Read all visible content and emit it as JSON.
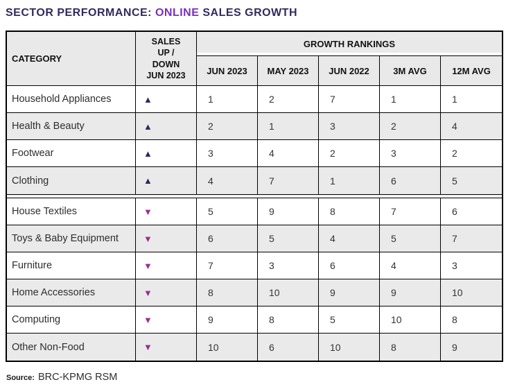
{
  "title": {
    "part1": "SECTOR PERFORMANCE: ",
    "highlight": "ONLINE",
    "part2": " SALES GROWTH"
  },
  "colors": {
    "title_dark": "#322a5e",
    "title_highlight": "#7c2fc0",
    "up_arrow": "#2b2963",
    "down_arrow": "#9b2e91",
    "header_bg": "#e9e9e9",
    "alt_row_bg": "#eaeaea",
    "border": "#000000"
  },
  "icons": {
    "up": "▲",
    "down": "▼"
  },
  "chart_data": {
    "type": "table",
    "title": "SECTOR PERFORMANCE: ONLINE SALES GROWTH",
    "header": {
      "category": "CATEGORY",
      "sales_up_down": "SALES\nUP /\nDOWN\nJUN 2023",
      "group": "GROWTH RANKINGS",
      "ranking_columns": [
        "JUN 2023",
        "MAY 2023",
        "JUN 2022",
        "3M AVG",
        "12M AVG"
      ]
    },
    "rows": [
      {
        "category": "Household Appliances",
        "direction": "up",
        "rankings": [
          1,
          2,
          7,
          1,
          1
        ]
      },
      {
        "category": "Health & Beauty",
        "direction": "up",
        "rankings": [
          2,
          1,
          3,
          2,
          4
        ]
      },
      {
        "category": "Footwear",
        "direction": "up",
        "rankings": [
          3,
          4,
          2,
          3,
          2
        ]
      },
      {
        "category": "Clothing",
        "direction": "up",
        "rankings": [
          4,
          7,
          1,
          6,
          5
        ]
      },
      {
        "category": "House Textiles",
        "direction": "down",
        "rankings": [
          5,
          9,
          8,
          7,
          6
        ]
      },
      {
        "category": "Toys & Baby Equipment",
        "direction": "down",
        "rankings": [
          6,
          5,
          4,
          5,
          7
        ]
      },
      {
        "category": "Furniture",
        "direction": "down",
        "rankings": [
          7,
          3,
          6,
          4,
          3
        ]
      },
      {
        "category": "Home Accessories",
        "direction": "down",
        "rankings": [
          8,
          10,
          9,
          9,
          10
        ]
      },
      {
        "category": "Computing",
        "direction": "down",
        "rankings": [
          9,
          8,
          5,
          10,
          8
        ]
      },
      {
        "category": "Other Non-Food",
        "direction": "down",
        "rankings": [
          10,
          6,
          10,
          8,
          9
        ]
      }
    ],
    "source": "Source: BRC-KPMG RSM"
  },
  "source": {
    "label": "Source:",
    "value": "BRC-KPMG RSM"
  }
}
